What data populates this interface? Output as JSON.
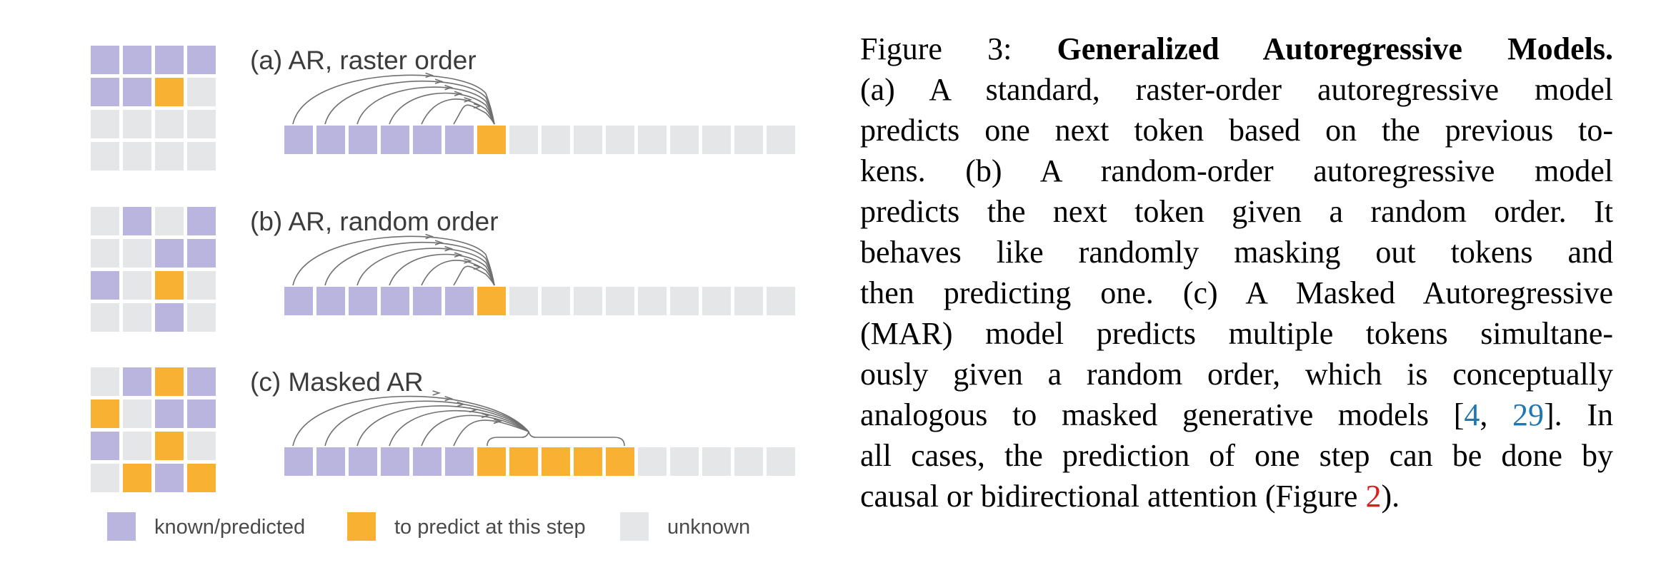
{
  "colors": {
    "known": "#b9b5df",
    "predict": "#f8b133",
    "unknown": "#e5e6e8",
    "arc": "#707070",
    "cite_link": "#1f77b4",
    "figure_link": "#d62020"
  },
  "panels": [
    {
      "label": "(a) AR, raster order",
      "grid": [
        "K",
        "K",
        "K",
        "K",
        "K",
        "K",
        "P",
        "U",
        "U",
        "U",
        "U",
        "U",
        "U",
        "U",
        "U",
        "U"
      ],
      "sequence": [
        "K",
        "K",
        "K",
        "K",
        "K",
        "K",
        "P",
        "U",
        "U",
        "U",
        "U",
        "U",
        "U",
        "U",
        "U",
        "U"
      ],
      "predict_positions": [
        6
      ]
    },
    {
      "label": "(b) AR, random order",
      "grid": [
        "U",
        "K",
        "U",
        "K",
        "U",
        "U",
        "K",
        "K",
        "K",
        "U",
        "P",
        "U",
        "U",
        "U",
        "K",
        "U"
      ],
      "sequence": [
        "K",
        "K",
        "K",
        "K",
        "K",
        "K",
        "P",
        "U",
        "U",
        "U",
        "U",
        "U",
        "U",
        "U",
        "U",
        "U"
      ],
      "predict_positions": [
        6
      ]
    },
    {
      "label": "(c) Masked AR",
      "grid": [
        "U",
        "K",
        "P",
        "K",
        "P",
        "U",
        "K",
        "K",
        "K",
        "U",
        "P",
        "U",
        "U",
        "P",
        "K",
        "P"
      ],
      "sequence": [
        "K",
        "K",
        "K",
        "K",
        "K",
        "K",
        "P",
        "P",
        "P",
        "P",
        "P",
        "U",
        "U",
        "U",
        "U",
        "U"
      ],
      "predict_positions": [
        6,
        7,
        8,
        9,
        10
      ]
    }
  ],
  "legend": [
    {
      "key": "known",
      "label": "known/predicted"
    },
    {
      "key": "predict",
      "label": "to predict at this step"
    },
    {
      "key": "unknown",
      "label": "unknown"
    }
  ],
  "caption": {
    "lines": [
      [
        {
          "t": "Figure 3:  ",
          "s": "n"
        },
        {
          "t": "Generalized Autoregressive Models.",
          "s": "b"
        }
      ],
      [
        {
          "t": "(a) A standard, raster-order autoregressive model",
          "s": "n"
        }
      ],
      [
        {
          "t": "predicts one next token based on the previous to-",
          "s": "n"
        }
      ],
      [
        {
          "t": "kens.  (b) A random-order autoregressive model",
          "s": "n"
        }
      ],
      [
        {
          "t": "predicts the next token given a random order.  It",
          "s": "n"
        }
      ],
      [
        {
          "t": "behaves like randomly masking out tokens and",
          "s": "n"
        }
      ],
      [
        {
          "t": "then predicting one. (c) A Masked Autoregressive",
          "s": "n"
        }
      ],
      [
        {
          "t": "(MAR) model predicts multiple tokens simultane-",
          "s": "n"
        }
      ],
      [
        {
          "t": "ously given a random order, which is conceptually",
          "s": "n"
        }
      ],
      [
        {
          "t": "analogous to masked generative models [",
          "s": "n"
        },
        {
          "t": "4",
          "s": "c"
        },
        {
          "t": ", ",
          "s": "n"
        },
        {
          "t": "29",
          "s": "c"
        },
        {
          "t": "].  In",
          "s": "n"
        }
      ],
      [
        {
          "t": "all cases, the prediction of one step can be done by",
          "s": "n"
        }
      ],
      [
        {
          "t": "causal or bidirectional attention (Figure ",
          "s": "n"
        },
        {
          "t": "2",
          "s": "f"
        },
        {
          "t": ").",
          "s": "n"
        }
      ]
    ]
  }
}
